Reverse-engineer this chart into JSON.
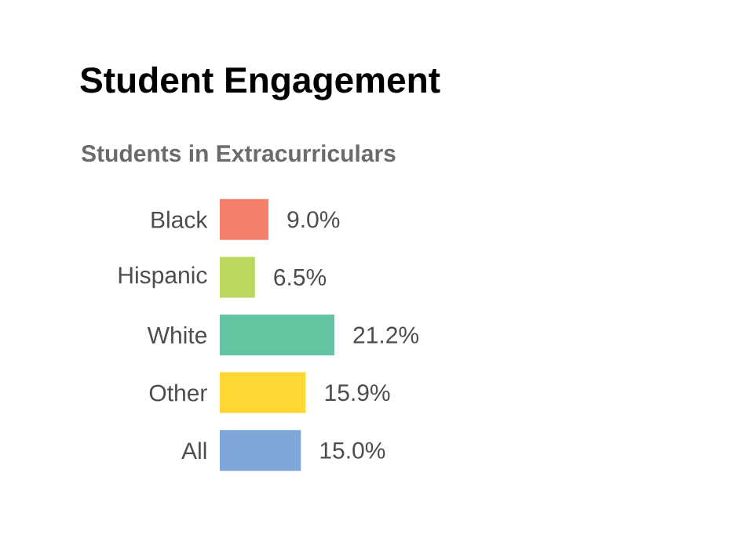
{
  "chart_data": {
    "type": "bar",
    "orientation": "horizontal",
    "title": "Student Engagement",
    "subtitle": "Students in Extracurriculars",
    "categories": [
      "Black",
      "Hispanic",
      "White",
      "Other",
      "All"
    ],
    "values": [
      9.0,
      6.5,
      21.2,
      15.9,
      15.0
    ],
    "colors": [
      "#f47f6b",
      "#bcd85f",
      "#64c3a0",
      "#fdd835",
      "#7ea7d8"
    ],
    "value_labels": [
      "9.0%",
      "6.5%",
      "21.2%",
      "15.9%",
      "15.0%"
    ]
  }
}
